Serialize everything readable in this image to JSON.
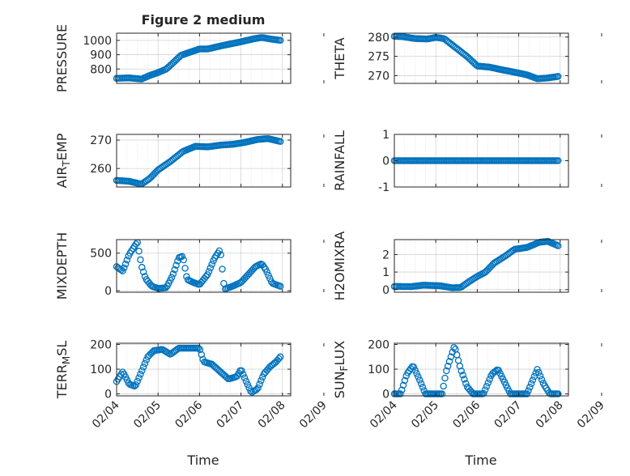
{
  "figure": {
    "title": "Figure 2 medium"
  },
  "colors": {
    "marker": "#0072BD",
    "axis": "#262626",
    "grid": "#b0b0b0",
    "background": "#ffffff"
  },
  "chart_data": [
    {
      "id": "pressure",
      "type": "scatter",
      "xlim": [
        0,
        4.2
      ],
      "ylim": [
        700,
        1050
      ],
      "yticks": [
        800,
        900,
        1000
      ],
      "ylabel": "PRESSURE",
      "grid": true,
      "marker": "circle-open",
      "curve": [
        [
          0,
          735
        ],
        [
          0.3,
          738
        ],
        [
          0.6,
          730
        ],
        [
          0.8,
          755
        ],
        [
          1.0,
          775
        ],
        [
          1.2,
          800
        ],
        [
          1.35,
          840
        ],
        [
          1.55,
          895
        ],
        [
          1.75,
          915
        ],
        [
          2.0,
          940
        ],
        [
          2.2,
          940
        ],
        [
          2.5,
          960
        ],
        [
          2.75,
          975
        ],
        [
          3.0,
          990
        ],
        [
          3.3,
          1010
        ],
        [
          3.5,
          1020
        ],
        [
          3.7,
          1010
        ],
        [
          3.95,
          1000
        ]
      ]
    },
    {
      "id": "theta",
      "type": "scatter",
      "xlim": [
        0,
        4.2
      ],
      "ylim": [
        268,
        281
      ],
      "yticks": [
        270,
        275,
        280
      ],
      "ylabel": "THETA",
      "grid": true,
      "marker": "circle-open",
      "curve": [
        [
          0,
          280.2
        ],
        [
          0.2,
          280.1
        ],
        [
          0.5,
          279.6
        ],
        [
          0.8,
          279.5
        ],
        [
          1.0,
          279.9
        ],
        [
          1.2,
          279.6
        ],
        [
          1.45,
          277.5
        ],
        [
          1.75,
          275.0
        ],
        [
          2.0,
          272.5
        ],
        [
          2.3,
          272.2
        ],
        [
          2.6,
          271.5
        ],
        [
          2.85,
          271.0
        ],
        [
          3.2,
          270.2
        ],
        [
          3.45,
          269.2
        ],
        [
          3.7,
          269.4
        ],
        [
          3.95,
          269.8
        ]
      ]
    },
    {
      "id": "air_temp",
      "type": "scatter",
      "xlim": [
        0,
        4.2
      ],
      "ylim": [
        253.5,
        272
      ],
      "yticks": [
        260,
        270
      ],
      "ylabel": "AIR_TEMP",
      "ylabel_display": {
        "base": "AIR",
        "sub": "T",
        "rest": "EMP"
      },
      "grid": true,
      "marker": "circle-open",
      "curve": [
        [
          0,
          255.8
        ],
        [
          0.3,
          255.5
        ],
        [
          0.6,
          254.5
        ],
        [
          0.8,
          256.5
        ],
        [
          1.0,
          259.5
        ],
        [
          1.3,
          262.5
        ],
        [
          1.6,
          266.0
        ],
        [
          1.9,
          267.8
        ],
        [
          2.2,
          267.6
        ],
        [
          2.5,
          268.2
        ],
        [
          2.8,
          268.5
        ],
        [
          3.1,
          269.2
        ],
        [
          3.4,
          270.2
        ],
        [
          3.65,
          270.5
        ],
        [
          3.95,
          269.5
        ]
      ]
    },
    {
      "id": "rainfall",
      "type": "scatter",
      "xlim": [
        0,
        4.2
      ],
      "ylim": [
        -1,
        1
      ],
      "yticks": [
        -1,
        0,
        1
      ],
      "ylabel": "RAINFALL",
      "grid": true,
      "marker": "circle-open",
      "curve": [
        [
          0,
          0
        ],
        [
          3.95,
          0
        ]
      ]
    },
    {
      "id": "mixdepth",
      "type": "scatter",
      "xlim": [
        0,
        4.2
      ],
      "ylim": [
        -20,
        680
      ],
      "yticks": [
        0,
        500
      ],
      "ylabel": "MIXDEPTH",
      "grid": true,
      "marker": "circle-open",
      "curve": [
        [
          0,
          320
        ],
        [
          0.15,
          260
        ],
        [
          0.3,
          480
        ],
        [
          0.5,
          650
        ],
        [
          0.6,
          330
        ],
        [
          0.7,
          160
        ],
        [
          0.85,
          60
        ],
        [
          1.0,
          30
        ],
        [
          1.2,
          40
        ],
        [
          1.35,
          200
        ],
        [
          1.5,
          440
        ],
        [
          1.6,
          460
        ],
        [
          1.7,
          150
        ],
        [
          1.85,
          110
        ],
        [
          2.0,
          80
        ],
        [
          2.2,
          220
        ],
        [
          2.35,
          420
        ],
        [
          2.5,
          550
        ],
        [
          2.6,
          20
        ],
        [
          2.8,
          60
        ],
        [
          3.0,
          110
        ],
        [
          3.2,
          230
        ],
        [
          3.35,
          320
        ],
        [
          3.5,
          360
        ],
        [
          3.6,
          280
        ],
        [
          3.75,
          100
        ],
        [
          3.95,
          60
        ]
      ]
    },
    {
      "id": "h2omixra",
      "type": "scatter",
      "xlim": [
        0,
        4.2
      ],
      "ylim": [
        -0.15,
        2.85
      ],
      "yticks": [
        0,
        1,
        2
      ],
      "ylabel": "H2OMIXRA",
      "grid": true,
      "marker": "circle-open",
      "curve": [
        [
          0,
          0.18
        ],
        [
          0.4,
          0.17
        ],
        [
          0.7,
          0.25
        ],
        [
          1.1,
          0.22
        ],
        [
          1.4,
          0.1
        ],
        [
          1.6,
          0.12
        ],
        [
          1.8,
          0.45
        ],
        [
          2.0,
          0.75
        ],
        [
          2.2,
          1.0
        ],
        [
          2.4,
          1.5
        ],
        [
          2.7,
          1.95
        ],
        [
          2.9,
          2.3
        ],
        [
          3.2,
          2.4
        ],
        [
          3.5,
          2.7
        ],
        [
          3.7,
          2.75
        ],
        [
          3.95,
          2.5
        ]
      ]
    },
    {
      "id": "terr_msl",
      "type": "scatter",
      "xlim": [
        0,
        4.2
      ],
      "ylim": [
        -8,
        205
      ],
      "yticks": [
        0,
        100,
        200
      ],
      "ylabel": "TERR_MSL",
      "ylabel_display": {
        "base": "TERR",
        "sub": "M",
        "rest": "SL"
      },
      "grid": true,
      "marker": "circle-open",
      "curve": [
        [
          0,
          50
        ],
        [
          0.15,
          90
        ],
        [
          0.3,
          40
        ],
        [
          0.45,
          30
        ],
        [
          0.6,
          90
        ],
        [
          0.75,
          150
        ],
        [
          0.9,
          175
        ],
        [
          1.1,
          180
        ],
        [
          1.3,
          160
        ],
        [
          1.5,
          185
        ],
        [
          1.75,
          185
        ],
        [
          2.0,
          185
        ],
        [
          2.1,
          130
        ],
        [
          2.3,
          120
        ],
        [
          2.5,
          90
        ],
        [
          2.7,
          60
        ],
        [
          2.9,
          70
        ],
        [
          3.0,
          100
        ],
        [
          3.1,
          60
        ],
        [
          3.25,
          5
        ],
        [
          3.4,
          20
        ],
        [
          3.55,
          80
        ],
        [
          3.7,
          110
        ],
        [
          3.85,
          130
        ],
        [
          3.95,
          150
        ]
      ]
    },
    {
      "id": "sun_flux",
      "type": "scatter",
      "xlim": [
        0,
        4.2
      ],
      "ylim": [
        -8,
        205
      ],
      "yticks": [
        0,
        100,
        200
      ],
      "ylabel": "SUN_FLUX",
      "ylabel_display": {
        "base": "SUN",
        "sub": "F",
        "rest": "LUX"
      },
      "grid": true,
      "marker": "circle-open",
      "curve": [
        [
          0,
          0
        ],
        [
          0.15,
          0
        ],
        [
          0.3,
          80
        ],
        [
          0.45,
          115
        ],
        [
          0.6,
          60
        ],
        [
          0.75,
          0
        ],
        [
          0.9,
          0
        ],
        [
          1.15,
          0
        ],
        [
          1.25,
          90
        ],
        [
          1.45,
          195
        ],
        [
          1.6,
          100
        ],
        [
          1.75,
          30
        ],
        [
          1.9,
          0
        ],
        [
          2.0,
          0
        ],
        [
          2.15,
          0
        ],
        [
          2.35,
          80
        ],
        [
          2.5,
          100
        ],
        [
          2.65,
          50
        ],
        [
          2.8,
          0
        ],
        [
          3.0,
          0
        ],
        [
          3.2,
          0
        ],
        [
          3.45,
          100
        ],
        [
          3.6,
          40
        ],
        [
          3.75,
          0
        ],
        [
          3.95,
          0
        ]
      ]
    }
  ],
  "xaxis": {
    "label": "Time",
    "tick_values": [
      0,
      1,
      2,
      3,
      4,
      5
    ],
    "tick_labels": [
      "02/04",
      "02/05",
      "02/06",
      "02/07",
      "02/08",
      "02/09"
    ]
  }
}
